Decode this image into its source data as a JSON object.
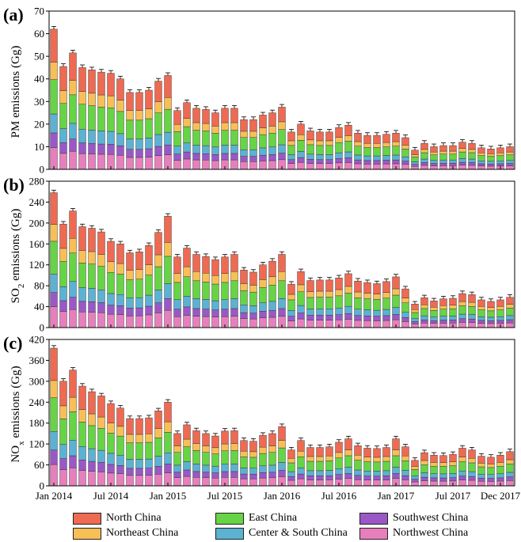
{
  "chart_data": {
    "type": "bar",
    "stacked": true,
    "x_tick_labels": [
      "Jan 2014",
      "Jul 2014",
      "Jan 2015",
      "Jul 2015",
      "Jan 2016",
      "Jul 2016",
      "Jan 2017",
      "Jul 2017",
      "Dec 2017"
    ],
    "regions": [
      {
        "name": "Northwest China",
        "color": "#e77fbd"
      },
      {
        "name": "Southwest China",
        "color": "#9a58c7"
      },
      {
        "name": "Center & South China",
        "color": "#5bb2d3"
      },
      {
        "name": "East China",
        "color": "#66d445"
      },
      {
        "name": "Northeast China",
        "color": "#f8bf56"
      },
      {
        "name": "North China",
        "color": "#ee6a52"
      }
    ],
    "legend": {
      "placement": "bottom",
      "order": [
        "North China",
        "East China",
        "Southwest China",
        "Northeast China",
        "Center & South China",
        "Northwest China"
      ]
    },
    "panels": [
      {
        "label": "(a)",
        "ylabel": "PM emissions (Gg)",
        "ylabel_sub": "",
        "ylabel_tail": "",
        "ylim": [
          0,
          70
        ],
        "yticks": [
          0,
          10,
          20,
          30,
          40,
          50,
          60,
          70
        ],
        "totals": [
          62,
          45.5,
          51.5,
          45,
          44,
          43,
          42.5,
          40,
          34,
          34,
          35,
          39,
          41.5,
          26,
          29.5,
          27,
          26.5,
          25,
          27,
          27,
          22,
          22,
          24,
          25,
          27.5,
          16.5,
          20,
          17,
          16.5,
          16.5,
          18.5,
          19.5,
          16,
          15,
          15,
          15.5,
          16,
          14,
          8.5,
          11.5,
          10,
          10.5,
          10.5,
          12,
          11.5,
          9.5,
          9,
          9.5,
          10
        ]
      },
      {
        "label": "(b)",
        "ylabel": "SO",
        "ylabel_sub": "2",
        "ylabel_tail": " emissions (Gg)",
        "ylim": [
          0,
          280
        ],
        "yticks": [
          0,
          40,
          80,
          120,
          160,
          200,
          240,
          280
        ],
        "totals": [
          258,
          198,
          223,
          193,
          190,
          183,
          165,
          160,
          143,
          145,
          157,
          182,
          213,
          135,
          152,
          140,
          136,
          130,
          135,
          140,
          110,
          106,
          120,
          127,
          140,
          83,
          107,
          90,
          91,
          91,
          95,
          103,
          89,
          86,
          84,
          88,
          97,
          74,
          45,
          57,
          51,
          55,
          56,
          65,
          63,
          53,
          50,
          53,
          58
        ]
      },
      {
        "label": "(c)",
        "ylabel": "NO",
        "ylabel_sub": "x",
        "ylabel_tail": " emissions (Gg)",
        "ylim": [
          0,
          420
        ],
        "yticks": [
          0,
          60,
          120,
          180,
          240,
          300,
          360,
          420
        ],
        "totals": [
          395,
          300,
          332,
          286,
          270,
          258,
          236,
          223,
          193,
          193,
          195,
          215,
          240,
          150,
          175,
          158,
          150,
          143,
          157,
          158,
          130,
          128,
          145,
          150,
          170,
          103,
          130,
          110,
          110,
          112,
          125,
          135,
          115,
          108,
          107,
          110,
          135,
          112,
          73,
          95,
          88,
          87,
          90,
          108,
          103,
          85,
          82,
          88,
          98
        ]
      }
    ]
  }
}
